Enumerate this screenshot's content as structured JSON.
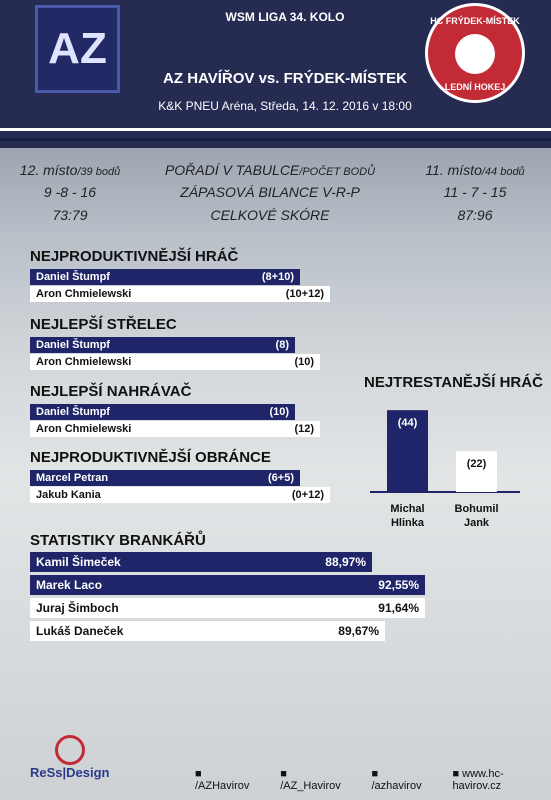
{
  "header": {
    "league": "WSM LIGA 34. KOLO",
    "match": "AZ HAVÍŘOV vs. FRÝDEK-MÍSTEK",
    "venue": "K&K PNEU Aréna, Středa, 14. 12. 2016 v 18:00",
    "home_logo": "AZ",
    "away_logo_top": "HC FRÝDEK-MÍSTEK",
    "away_logo_bottom": "LEDNÍ HOKEJ"
  },
  "comparison": {
    "home": {
      "place": "12. místo",
      "points": "/39 bodů",
      "record": "9 -8 - 16",
      "score": "73:79"
    },
    "labels": {
      "place": "POŘADÍ V TABULCE",
      "points": "/POČET BODŮ",
      "record": "ZÁPASOVÁ BILANCE V-R-P",
      "score": "CELKOVÉ SKÓRE"
    },
    "away": {
      "place": "11. místo",
      "points": "/44 bodů",
      "record": "11 - 7 - 15",
      "score": "87:96"
    }
  },
  "sections": [
    {
      "title": "NEJPRODUKTIVNĚJŠÍ HRÁČ",
      "rows": [
        {
          "name": "Daniel Štumpf",
          "value": "(8+10)"
        },
        {
          "name": "Aron Chmielewski",
          "value": "(10+12)"
        }
      ]
    },
    {
      "title": "NEJLEPŠÍ STŘELEC",
      "rows": [
        {
          "name": "Daniel Štumpf",
          "value": "(8)"
        },
        {
          "name": "Aron Chmielewski",
          "value": "(10)"
        }
      ]
    },
    {
      "title": "NEJLEPŠÍ NAHRÁVAČ",
      "rows": [
        {
          "name": "Daniel Štumpf",
          "value": "(10)"
        },
        {
          "name": "Aron Chmielewski",
          "value": "(12)"
        }
      ]
    },
    {
      "title": "NEJPRODUKTIVNĚJŠÍ OBRÁNCE",
      "rows": [
        {
          "name": "Marcel Petran",
          "value": "(6+5)"
        },
        {
          "name": "Jakub Kania",
          "value": "(0+12)"
        }
      ]
    }
  ],
  "penalties": {
    "title": "NEJTRESTANĚJŠÍ HRÁČ",
    "names": [
      "Michal Hlinka",
      "Bohumil Jank"
    ],
    "values": [
      44,
      22
    ],
    "value_labels": [
      "(44)",
      "(22)"
    ]
  },
  "goalies": {
    "title": "STATISTIKY BRANKÁŘŮ",
    "rows": [
      {
        "name": "Kamil Šimeček",
        "value": "88,97%"
      },
      {
        "name": "Marek Laco",
        "value": "92,55%"
      },
      {
        "name": "Juraj Šimboch",
        "value": "91,64%"
      },
      {
        "name": "Lukáš Daneček",
        "value": "89,67%"
      }
    ]
  },
  "footer": {
    "brand": "ReSs|Design",
    "facebook": "/AZHavirov",
    "twitter": "/AZ_Havirov",
    "instagram": "/azhavirov",
    "web": "www.hc-havirov.cz"
  }
}
